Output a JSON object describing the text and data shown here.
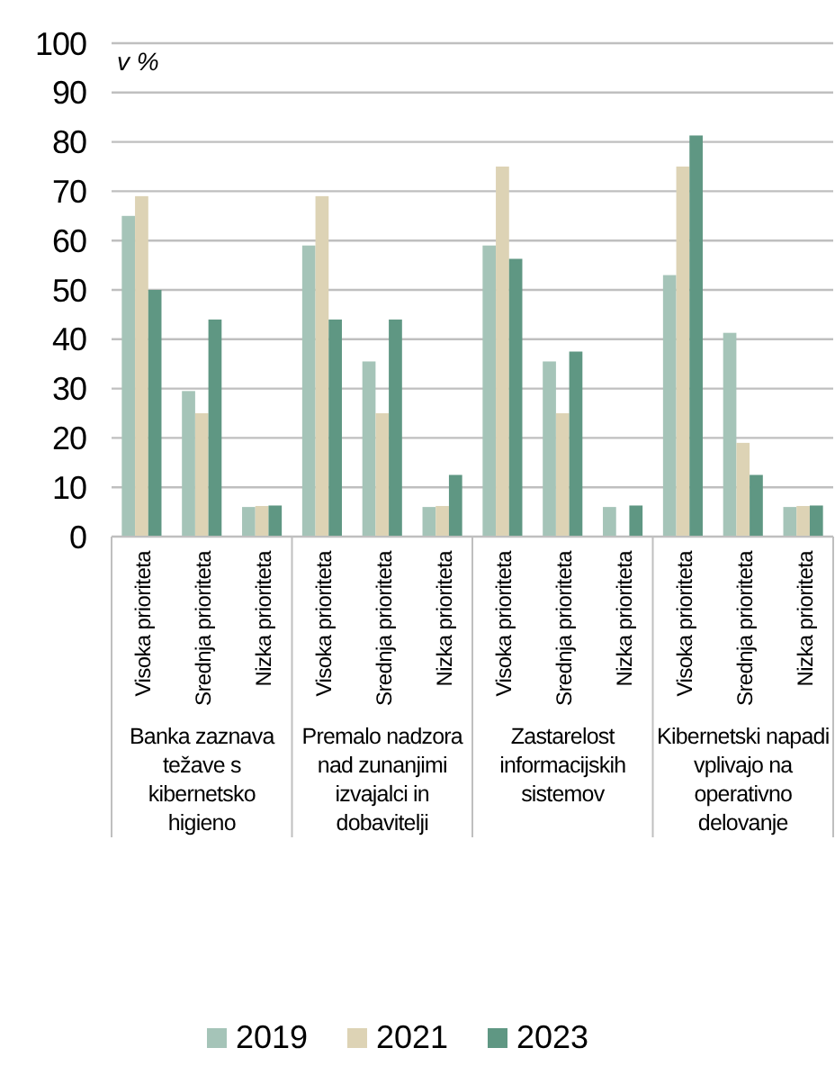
{
  "chart_data": {
    "type": "bar",
    "ylabel": "v %",
    "categories": [
      "Visoka prioriteta",
      "Srednja prioriteta",
      "Nizka prioriteta",
      "Visoka prioriteta",
      "Srednja prioriteta",
      "Nizka prioriteta",
      "Visoka prioriteta",
      "Srednja prioriteta",
      "Nizka prioriteta",
      "Visoka prioriteta",
      "Srednja prioriteta",
      "Nizka prioriteta"
    ],
    "annotations": [
      "Banka zaznava težave s kibernetsko higieno",
      "Premalo nadzora nad zunanjimi izvajalci in dobavitelji",
      "Zastarelost informacijskih sistemov",
      "Kibernetski napadi vplivajo na operativno delovanje"
    ],
    "series": [
      {
        "name": "2019",
        "color": "#a5c4b8",
        "values": [
          65,
          29.5,
          6,
          59,
          35.5,
          6,
          59,
          35.5,
          6,
          53,
          41.3,
          6
        ]
      },
      {
        "name": "2021",
        "color": "#ddd3b5",
        "values": [
          69,
          25,
          6.2,
          69,
          25,
          6.2,
          75,
          25,
          null,
          75,
          19,
          6.2
        ]
      },
      {
        "name": "2023",
        "color": "#5f9783",
        "values": [
          50,
          44,
          6.3,
          44,
          44,
          12.5,
          56.3,
          37.5,
          6.3,
          81.3,
          12.5,
          6.3
        ]
      }
    ],
    "ylim": [
      0,
      100
    ],
    "yticks": [
      0,
      10,
      20,
      30,
      40,
      50,
      60,
      70,
      80,
      90,
      100
    ],
    "grid": "y",
    "legend": "bottom"
  }
}
